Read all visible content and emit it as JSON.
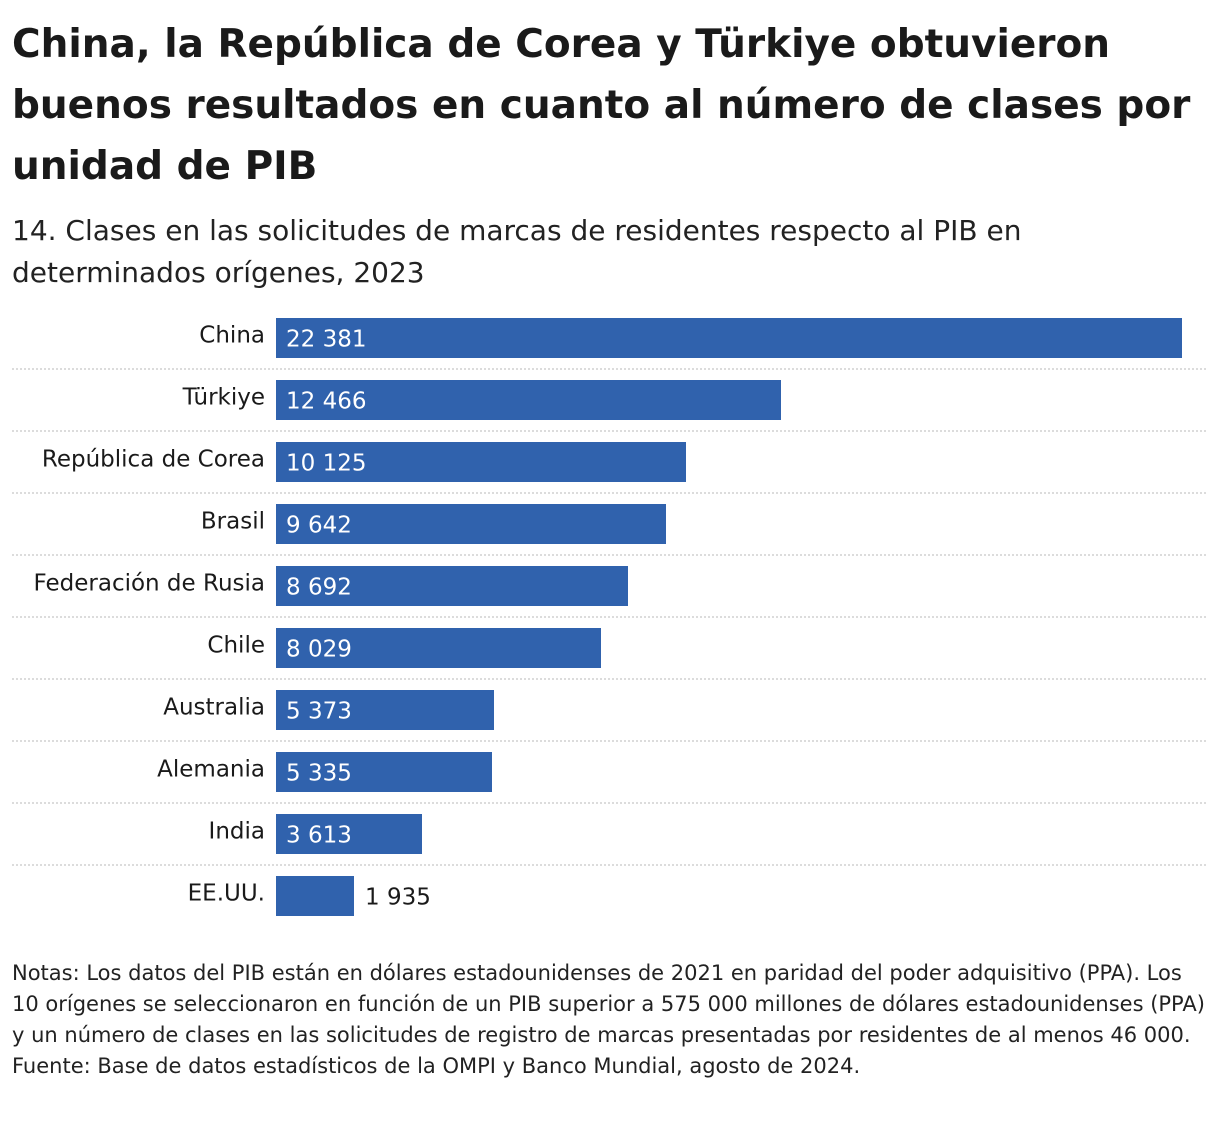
{
  "title": "China, la República de Corea y Türkiye obtuvieron buenos resultados en cuanto al número de clases por unidad de PIB",
  "subtitle": "14. Clases en las solicitudes de marcas de residentes respecto al PIB en determinados orígenes, 2023",
  "notes": "Notas: Los datos del PIB están en dólares estadounidenses de 2021 en paridad del poder adquisitivo (PPA). Los 10 orígenes se seleccionaron en función de un PIB superior a 575 000 millones de dólares estadounidenses (PPA) y un número de clases en las solicitudes de registro de marcas presentadas por residentes de al menos 46 000.",
  "source": "Fuente: Base de datos estadísticos de la OMPI y Banco Mundial, agosto de 2024.",
  "colors": {
    "bar": "#3062ad",
    "grid": "#c8c8c8"
  },
  "chart_data": {
    "type": "bar",
    "orientation": "horizontal",
    "title": "Clases en las solicitudes de marcas de residentes respecto al PIB en determinados orígenes, 2023",
    "categories": [
      "China",
      "Türkiye",
      "República de Corea",
      "Brasil",
      "Federación de Rusia",
      "Chile",
      "Australia",
      "Alemania",
      "India",
      "EE.UU."
    ],
    "values": [
      22381,
      12466,
      10125,
      9642,
      8692,
      8029,
      5373,
      5335,
      3613,
      1935
    ],
    "value_labels": [
      "22 381",
      "12 466",
      "10 125",
      "9 642",
      "8 692",
      "8 029",
      "5 373",
      "5 335",
      "3 613",
      "1 935"
    ],
    "xlim": [
      0,
      22381
    ],
    "grid": false
  }
}
